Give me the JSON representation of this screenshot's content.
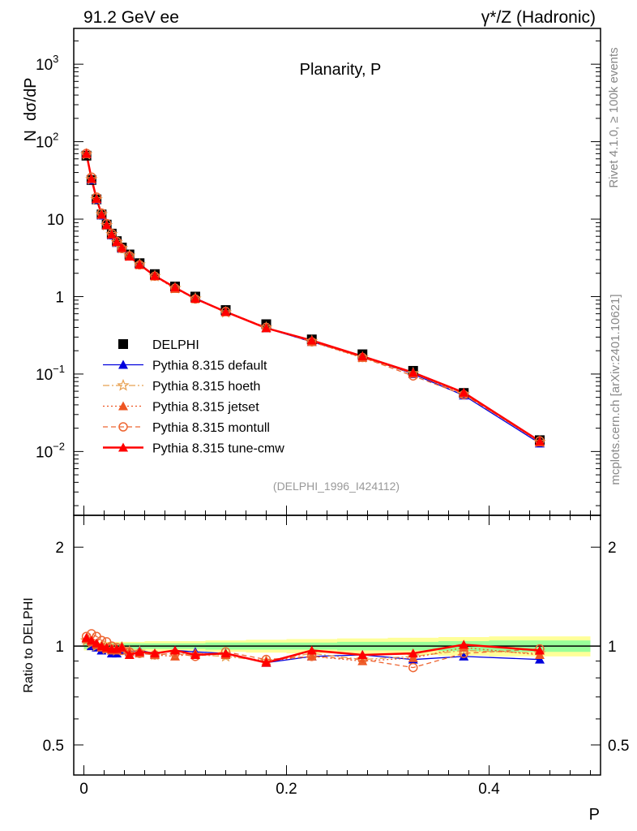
{
  "header": {
    "left": "91.2 GeV ee",
    "right": "γ*/Z (Hadronic)"
  },
  "side": {
    "rivet": "Rivet 4.1.0, ≥ 100k events",
    "mcplots": "mcplots.cern.ch [arXiv:2401.10621]"
  },
  "chart_data": {
    "type": "line",
    "title": "Planarity, P",
    "xlabel": "P",
    "ylabel": "N  dσ/dP",
    "ratio_ylabel": "Ratio to DELPHI",
    "analysis": "(DELPHI_1996_I424112)",
    "xlim": [
      -0.01,
      0.51
    ],
    "ylim": [
      0.0015,
      2900
    ],
    "yscale": "log",
    "ratio_ylim": [
      0.405,
      2.5
    ],
    "xticks": [
      "0",
      "0.2",
      "0.4"
    ],
    "xtick_values": [
      0,
      0.2,
      0.4
    ],
    "yticks": [
      {
        "base": "10",
        "exp": "−2",
        "v": 0.01
      },
      {
        "base": "10",
        "exp": "−1",
        "v": 0.1
      },
      {
        "base": "1",
        "exp": "",
        "v": 1
      },
      {
        "base": "10",
        "exp": "",
        "v": 10
      },
      {
        "base": "10",
        "exp": "2",
        "v": 100
      },
      {
        "base": "10",
        "exp": "3",
        "v": 1000
      }
    ],
    "ratio_yticks": [
      {
        "label": "0.5",
        "v": 0.5
      },
      {
        "label": "1",
        "v": 1
      },
      {
        "label": "2",
        "v": 2
      }
    ],
    "legend_position": "center-left",
    "x": [
      0.0025,
      0.0075,
      0.0125,
      0.0175,
      0.0225,
      0.0275,
      0.0325,
      0.0375,
      0.045,
      0.055,
      0.07,
      0.09,
      0.11,
      0.14,
      0.18,
      0.225,
      0.275,
      0.325,
      0.375,
      0.45
    ],
    "bin_edges": [
      0,
      0.005,
      0.01,
      0.015,
      0.02,
      0.025,
      0.03,
      0.035,
      0.04,
      0.05,
      0.06,
      0.08,
      0.1,
      0.12,
      0.16,
      0.2,
      0.25,
      0.3,
      0.35,
      0.4,
      0.5
    ],
    "data": {
      "name": "DELPHI",
      "values": [
        66,
        32,
        18,
        11.5,
        8.5,
        6.5,
        5.2,
        4.3,
        3.5,
        2.7,
        1.95,
        1.35,
        1.0,
        0.67,
        0.44,
        0.28,
        0.18,
        0.11,
        0.057,
        0.014
      ],
      "stat_band": [
        0.02,
        0.02,
        0.02,
        0.02,
        0.02,
        0.02,
        0.02,
        0.02,
        0.02,
        0.02,
        0.02,
        0.02,
        0.02,
        0.025,
        0.025,
        0.025,
        0.03,
        0.03,
        0.035,
        0.04
      ],
      "total_band": [
        0.03,
        0.03,
        0.03,
        0.03,
        0.03,
        0.03,
        0.03,
        0.03,
        0.03,
        0.03,
        0.035,
        0.035,
        0.035,
        0.04,
        0.045,
        0.05,
        0.055,
        0.06,
        0.065,
        0.07
      ]
    },
    "series": [
      {
        "name": "Pythia 8.315 default",
        "color": "#0000dd",
        "style": "solid",
        "marker": "triangle",
        "ratio": [
          1.05,
          1.0,
          0.99,
          0.97,
          0.98,
          0.95,
          0.95,
          0.97,
          0.96,
          0.97,
          0.95,
          0.97,
          0.96,
          0.95,
          0.89,
          0.93,
          0.94,
          0.91,
          0.93,
          0.91
        ]
      },
      {
        "name": "Pythia 8.315 hoeth",
        "color": "#e8a050",
        "style": "dashdot",
        "marker": "star",
        "ratio": [
          1.04,
          1.02,
          1.0,
          1.0,
          0.98,
          0.98,
          0.97,
          0.98,
          0.96,
          0.96,
          0.94,
          0.95,
          0.94,
          0.93,
          0.9,
          0.95,
          0.91,
          0.93,
          0.97,
          0.95
        ]
      },
      {
        "name": "Pythia 8.315 jetset",
        "color": "#ee5522",
        "style": "dotted",
        "marker": "triangle",
        "ratio": [
          1.05,
          1.03,
          1.01,
          0.99,
          0.98,
          0.97,
          0.97,
          1.0,
          0.96,
          0.95,
          0.94,
          0.93,
          0.95,
          0.94,
          0.9,
          0.93,
          0.9,
          0.92,
          0.99,
          0.94
        ]
      },
      {
        "name": "Pythia 8.315 montull",
        "color": "#ee6633",
        "style": "dashed",
        "marker": "circle",
        "ratio": [
          1.07,
          1.09,
          1.07,
          1.04,
          1.03,
          1.0,
          0.99,
          0.97,
          0.96,
          0.95,
          0.94,
          0.95,
          0.93,
          0.96,
          0.91,
          0.93,
          0.91,
          0.86,
          0.95,
          0.98
        ]
      },
      {
        "name": "Pythia 8.315 tune-cmw",
        "color": "#ff0000",
        "style": "solid-thick",
        "marker": "triangle",
        "ratio": [
          1.06,
          1.04,
          1.02,
          1.0,
          0.99,
          0.98,
          0.98,
          0.99,
          0.94,
          0.96,
          0.95,
          0.97,
          0.94,
          0.95,
          0.89,
          0.97,
          0.94,
          0.95,
          1.01,
          0.97
        ]
      }
    ]
  }
}
